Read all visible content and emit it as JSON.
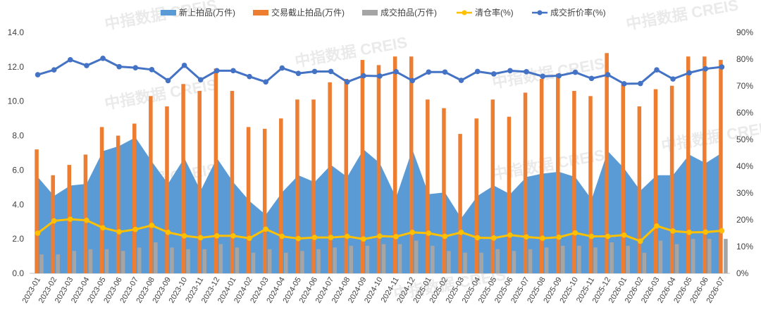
{
  "chart_data": {
    "type": "combo",
    "legend": {
      "placement": "top",
      "items": [
        {
          "name": "新上拍品(万件)",
          "kind": "area",
          "color": "#5B9BD5"
        },
        {
          "name": "交易截止拍品(万件)",
          "kind": "bar",
          "color": "#ED7D31"
        },
        {
          "name": "成交拍品(万件)",
          "kind": "bar",
          "color": "#A5A5A5"
        },
        {
          "name": "清仓率(%)",
          "kind": "line",
          "color": "#FFC000"
        },
        {
          "name": "成交折价率(%)",
          "kind": "line",
          "color": "#4472C4"
        }
      ]
    },
    "categories": [
      "2023-01",
      "2023-02",
      "2023-03",
      "2023-04",
      "2023-05",
      "2023-06",
      "2023-07",
      "2023-08",
      "2023-09",
      "2023-10",
      "2023-11",
      "2023-12",
      "2024-01",
      "2024-02",
      "2024-03",
      "2024-04",
      "2024-05",
      "2024-06",
      "2024-07",
      "2024-08",
      "2024-09",
      "2024-10",
      "2024-11",
      "2024-12",
      "2025-01",
      "2025-02",
      "2025-03",
      "2025-04",
      "2025-05",
      "2025-06",
      "2025-07",
      "2025-08",
      "2025-09",
      "2025-10",
      "2025-11",
      "2025-12",
      "2026-01",
      "2026-02",
      "2026-03",
      "2026-04",
      "2026-05",
      "2026-06",
      "2026-07"
    ],
    "y_left": {
      "min": 0,
      "max": 14,
      "step": 2,
      "tick_labels": [
        "0.0",
        "2.0",
        "4.0",
        "6.0",
        "8.0",
        "10.0",
        "12.0",
        "14.0"
      ]
    },
    "y_right": {
      "min": 0,
      "max": 90,
      "step": 10,
      "tick_labels": [
        "0%",
        "10%",
        "20%",
        "30%",
        "40%",
        "50%",
        "60%",
        "70%",
        "80%",
        "90%"
      ]
    },
    "grid": false,
    "series": [
      {
        "name": "新上拍品(万件)",
        "axis": "left",
        "type": "area",
        "color": "#5B9BD5",
        "values": [
          5.6,
          4.5,
          5.1,
          5.2,
          7.1,
          7.4,
          7.9,
          6.5,
          5.2,
          6.7,
          4.8,
          6.7,
          5.3,
          4.2,
          3.4,
          4.7,
          5.7,
          5.3,
          6.3,
          5.6,
          7.2,
          6.4,
          4.4,
          7.2,
          4.6,
          4.7,
          3.2,
          4.5,
          5.1,
          4.6,
          5.6,
          5.8,
          5.9,
          5.6,
          4.3,
          7.1,
          6.1,
          4.8,
          5.7,
          5.7,
          6.9,
          6.4,
          7.0
        ]
      },
      {
        "name": "交易截止拍品(万件)",
        "axis": "left",
        "type": "bar",
        "color": "#ED7D31",
        "values": [
          7.2,
          5.7,
          6.3,
          6.9,
          8.5,
          8.0,
          8.7,
          10.3,
          9.7,
          11.0,
          10.6,
          11.9,
          10.6,
          8.5,
          8.4,
          9.0,
          10.1,
          10.1,
          11.1,
          11.3,
          12.4,
          12.1,
          12.6,
          12.6,
          10.1,
          9.6,
          8.1,
          9.0,
          10.1,
          9.1,
          10.5,
          11.3,
          11.6,
          10.6,
          10.3,
          12.8,
          11.0,
          9.7,
          10.7,
          10.9,
          12.6,
          12.6,
          12.4
        ]
      },
      {
        "name": "成交拍品(万件)",
        "axis": "left",
        "type": "bar",
        "color": "#A5A5A5",
        "values": [
          1.1,
          1.1,
          1.3,
          1.4,
          1.4,
          1.3,
          1.5,
          1.8,
          1.5,
          1.4,
          1.4,
          1.7,
          1.5,
          1.2,
          1.4,
          1.2,
          1.3,
          1.4,
          1.5,
          1.6,
          1.6,
          1.7,
          1.7,
          1.9,
          1.6,
          1.3,
          1.2,
          1.2,
          1.4,
          1.3,
          1.4,
          1.5,
          1.6,
          1.6,
          1.5,
          1.8,
          1.6,
          1.2,
          1.9,
          1.7,
          2.0,
          2.0,
          2.0
        ]
      },
      {
        "name": "清仓率(%)",
        "axis": "right",
        "type": "line",
        "color": "#FFC000",
        "values": [
          15.0,
          19.6,
          20.2,
          19.8,
          17.0,
          15.5,
          16.4,
          17.9,
          15.3,
          14.0,
          13.3,
          14.0,
          14.0,
          13.1,
          16.5,
          13.8,
          13.0,
          13.4,
          13.4,
          13.8,
          12.8,
          13.9,
          13.7,
          15.3,
          15.0,
          13.8,
          15.3,
          13.3,
          13.2,
          14.3,
          13.6,
          13.1,
          13.5,
          15.1,
          13.8,
          13.8,
          14.3,
          12.0,
          17.7,
          15.8,
          15.3,
          15.4,
          15.9
        ]
      },
      {
        "name": "成交折价率(%)",
        "axis": "right",
        "type": "line",
        "color": "#4472C4",
        "values": [
          74.2,
          76.0,
          79.8,
          77.6,
          80.3,
          77.2,
          76.8,
          76.1,
          72.0,
          77.7,
          72.3,
          75.7,
          75.7,
          73.5,
          71.5,
          76.7,
          74.7,
          75.4,
          75.4,
          71.5,
          73.8,
          73.7,
          75.3,
          72.0,
          75.2,
          75.2,
          72.1,
          75.4,
          74.5,
          75.7,
          75.3,
          73.6,
          73.8,
          75.1,
          72.8,
          74.2,
          70.8,
          70.9,
          76.0,
          72.6,
          74.9,
          76.4,
          77.1
        ]
      }
    ],
    "watermark": "中指数据 CREIS"
  }
}
